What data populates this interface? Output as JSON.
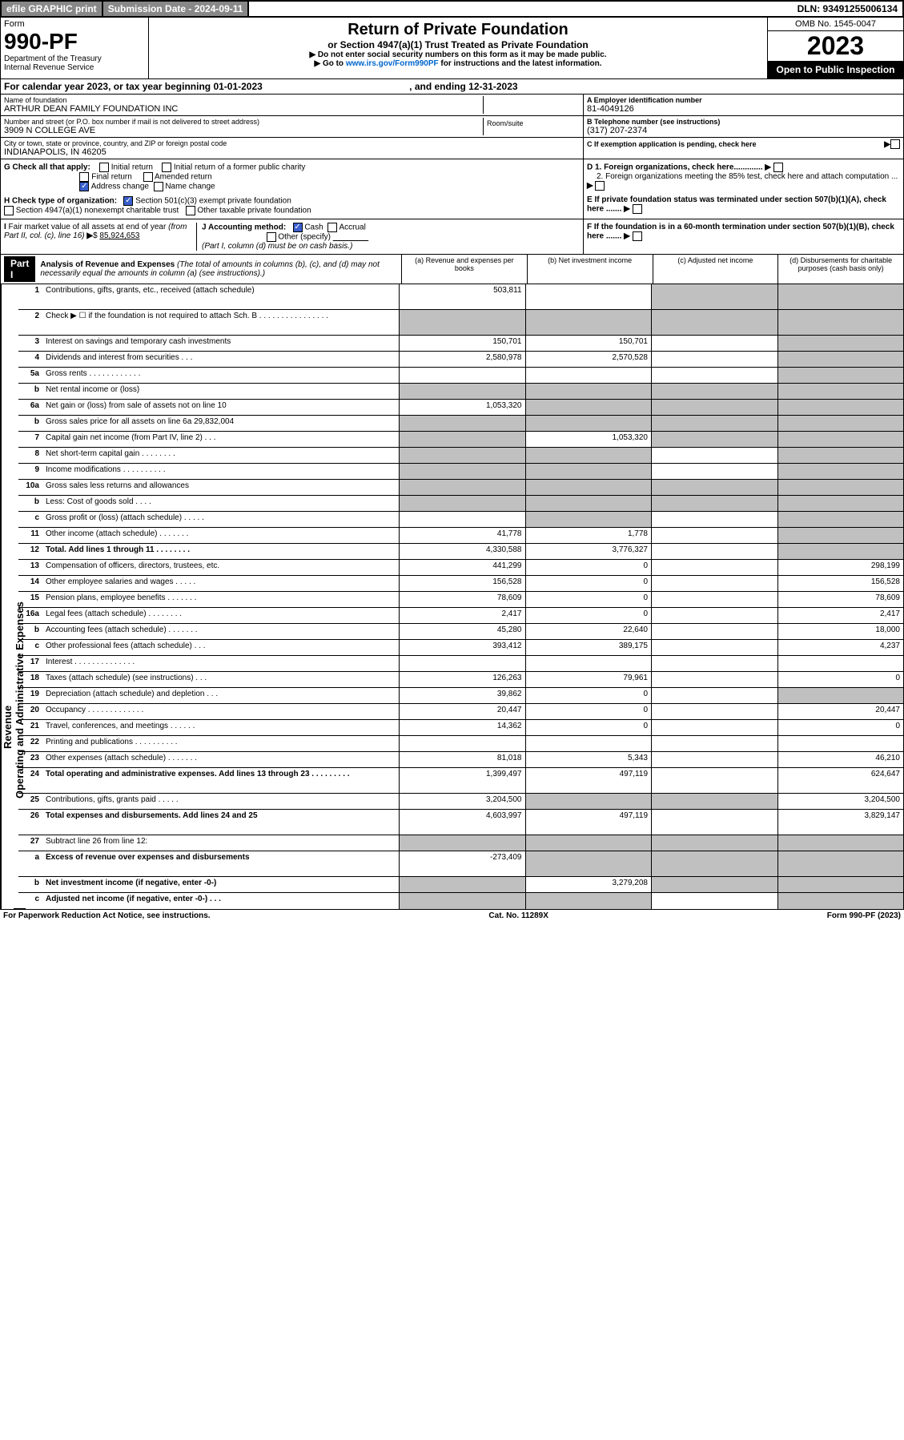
{
  "topbar": {
    "efile": "efile GRAPHIC print",
    "subdate": "Submission Date - 2024-09-11",
    "dln": "DLN: 93491255006134"
  },
  "header": {
    "form": "Form",
    "num": "990-PF",
    "dept": "Department of the Treasury\nInternal Revenue Service",
    "title": "Return of Private Foundation",
    "sub": "or Section 4947(a)(1) Trust Treated as Private Foundation",
    "note1": "▶ Do not enter social security numbers on this form as it may be made public.",
    "note2": "▶ Go to www.irs.gov/Form990PF for instructions and the latest information.",
    "link": "www.irs.gov/Form990PF",
    "omb": "OMB No. 1545-0047",
    "year": "2023",
    "open": "Open to Public Inspection"
  },
  "calyear": "For calendar year 2023, or tax year beginning 01-01-2023",
  "ending": ", and ending 12-31-2023",
  "info": {
    "name_lbl": "Name of foundation",
    "name": "ARTHUR DEAN FAMILY FOUNDATION INC",
    "addr_lbl": "Number and street (or P.O. box number if mail is not delivered to street address)",
    "addr": "3909 N COLLEGE AVE",
    "room_lbl": "Room/suite",
    "city_lbl": "City or town, state or province, country, and ZIP or foreign postal code",
    "city": "INDIANAPOLIS, IN  46205",
    "a_lbl": "A Employer identification number",
    "a_val": "81-4049126",
    "b_lbl": "B Telephone number (see instructions)",
    "b_val": "(317) 207-2374",
    "c_lbl": "C If exemption application is pending, check here"
  },
  "g": {
    "lbl": "G Check all that apply:",
    "o1": "Initial return",
    "o2": "Final return",
    "o3": "Address change",
    "o4": "Initial return of a former public charity",
    "o5": "Amended return",
    "o6": "Name change"
  },
  "h": {
    "lbl": "H Check type of organization:",
    "o1": "Section 501(c)(3) exempt private foundation",
    "o2": "Section 4947(a)(1) nonexempt charitable trust",
    "o3": "Other taxable private foundation"
  },
  "i": {
    "lbl": "I Fair market value of all assets at end of year (from Part II, col. (c), line 16) ▶$",
    "val": "85,924,653"
  },
  "j": {
    "lbl": "J Accounting method:",
    "o1": "Cash",
    "o2": "Accrual",
    "o3": "Other (specify)",
    "note": "(Part I, column (d) must be on cash basis.)"
  },
  "d": {
    "d1": "D 1. Foreign organizations, check here.............",
    "d2": "2. Foreign organizations meeting the 85% test, check here and attach computation ..."
  },
  "e_lbl": "E  If private foundation status was terminated under section 507(b)(1)(A), check here .......",
  "f_lbl": "F  If the foundation is in a 60-month termination under section 507(b)(1)(B), check here .......",
  "parti": {
    "lbl": "Part I",
    "title": "Analysis of Revenue and Expenses",
    "note": "(The total of amounts in columns (b), (c), and (d) may not necessarily equal the amounts in column (a) (see instructions).)",
    "ca": "(a)    Revenue and expenses per books",
    "cb": "(b)    Net investment income",
    "cc": "(c)   Adjusted net income",
    "cd": "(d)   Disbursements for charitable purposes (cash basis only)"
  },
  "sidebar": {
    "rev": "Revenue",
    "exp": "Operating and Administrative Expenses"
  },
  "rows": [
    {
      "ln": "1",
      "desc": "Contributions, gifts, grants, etc., received (attach schedule)",
      "a": "503,811",
      "b": "",
      "c": "g",
      "d": "g",
      "tall": true
    },
    {
      "ln": "2",
      "desc": "Check ▶ ☐ if the foundation is not required to attach Sch. B    .  .  .  .  .  .  .  .  .  .  .  .  .  .  .  .",
      "a": "g",
      "b": "g",
      "c": "g",
      "d": "g",
      "tall": true,
      "abold": true
    },
    {
      "ln": "3",
      "desc": "Interest on savings and temporary cash investments",
      "a": "150,701",
      "b": "150,701",
      "c": "",
      "d": "g"
    },
    {
      "ln": "4",
      "desc": "Dividends and interest from securities    .  .  .",
      "a": "2,580,978",
      "b": "2,570,528",
      "c": "",
      "d": "g"
    },
    {
      "ln": "5a",
      "desc": "Gross rents    .  .  .  .  .  .  .  .  .  .  .  .",
      "a": "",
      "b": "",
      "c": "",
      "d": "g"
    },
    {
      "ln": "b",
      "desc": "Net rental income or (loss) ",
      "a": "g",
      "b": "g",
      "c": "g",
      "d": "g"
    },
    {
      "ln": "6a",
      "desc": "Net gain or (loss) from sale of assets not on line 10",
      "a": "1,053,320",
      "b": "g",
      "c": "g",
      "d": "g"
    },
    {
      "ln": "b",
      "desc": "Gross sales price for all assets on line 6a  29,832,004",
      "a": "g",
      "b": "g",
      "c": "g",
      "d": "g"
    },
    {
      "ln": "7",
      "desc": "Capital gain net income (from Part IV, line 2)  .  .  .",
      "a": "g",
      "b": "1,053,320",
      "c": "g",
      "d": "g"
    },
    {
      "ln": "8",
      "desc": "Net short-term capital gain  .  .  .  .  .  .  .  .",
      "a": "g",
      "b": "g",
      "c": "",
      "d": "g"
    },
    {
      "ln": "9",
      "desc": "Income modifications .  .  .  .  .  .  .  .  .  .",
      "a": "g",
      "b": "g",
      "c": "",
      "d": "g"
    },
    {
      "ln": "10a",
      "desc": "Gross sales less returns and allowances ",
      "a": "g",
      "b": "g",
      "c": "g",
      "d": "g"
    },
    {
      "ln": "b",
      "desc": "Less: Cost of goods sold  .  .  .  . ",
      "a": "g",
      "b": "g",
      "c": "g",
      "d": "g"
    },
    {
      "ln": "c",
      "desc": "Gross profit or (loss) (attach schedule)  .  .  .  .  .",
      "a": "",
      "b": "g",
      "c": "",
      "d": "g"
    },
    {
      "ln": "11",
      "desc": "Other income (attach schedule)  .  .  .  .  .  .  .",
      "a": "41,778",
      "b": "1,778",
      "c": "",
      "d": "g"
    },
    {
      "ln": "12",
      "desc": "Total. Add lines 1 through 11  .  .  .  .  .  .  .  .",
      "a": "4,330,588",
      "b": "3,776,327",
      "c": "",
      "d": "g",
      "bold": true
    },
    {
      "ln": "13",
      "desc": "Compensation of officers, directors, trustees, etc.",
      "a": "441,299",
      "b": "0",
      "c": "",
      "d": "298,199"
    },
    {
      "ln": "14",
      "desc": "Other employee salaries and wages  .  .  .  .  .",
      "a": "156,528",
      "b": "0",
      "c": "",
      "d": "156,528"
    },
    {
      "ln": "15",
      "desc": "Pension plans, employee benefits .  .  .  .  .  .  .",
      "a": "78,609",
      "b": "0",
      "c": "",
      "d": "78,609"
    },
    {
      "ln": "16a",
      "desc": "Legal fees (attach schedule) .  .  .  .  .  .  .  .",
      "a": "2,417",
      "b": "0",
      "c": "",
      "d": "2,417"
    },
    {
      "ln": "b",
      "desc": "Accounting fees (attach schedule) .  .  .  .  .  .  .",
      "a": "45,280",
      "b": "22,640",
      "c": "",
      "d": "18,000"
    },
    {
      "ln": "c",
      "desc": "Other professional fees (attach schedule)  .  .  .",
      "a": "393,412",
      "b": "389,175",
      "c": "",
      "d": "4,237"
    },
    {
      "ln": "17",
      "desc": "Interest .  .  .  .  .  .  .  .  .  .  .  .  .  .",
      "a": "",
      "b": "",
      "c": "",
      "d": ""
    },
    {
      "ln": "18",
      "desc": "Taxes (attach schedule) (see instructions)  .  .  .",
      "a": "126,263",
      "b": "79,961",
      "c": "",
      "d": "0"
    },
    {
      "ln": "19",
      "desc": "Depreciation (attach schedule) and depletion  .  .  .",
      "a": "39,862",
      "b": "0",
      "c": "",
      "d": "g"
    },
    {
      "ln": "20",
      "desc": "Occupancy .  .  .  .  .  .  .  .  .  .  .  .  .",
      "a": "20,447",
      "b": "0",
      "c": "",
      "d": "20,447"
    },
    {
      "ln": "21",
      "desc": "Travel, conferences, and meetings .  .  .  .  .  .",
      "a": "14,362",
      "b": "0",
      "c": "",
      "d": "0"
    },
    {
      "ln": "22",
      "desc": "Printing and publications .  .  .  .  .  .  .  .  .  .",
      "a": "",
      "b": "",
      "c": "",
      "d": ""
    },
    {
      "ln": "23",
      "desc": "Other expenses (attach schedule) .  .  .  .  .  .  .",
      "a": "81,018",
      "b": "5,343",
      "c": "",
      "d": "46,210"
    },
    {
      "ln": "24",
      "desc": "Total operating and administrative expenses. Add lines 13 through 23  .  .  .  .  .  .  .  .  .",
      "a": "1,399,497",
      "b": "497,119",
      "c": "",
      "d": "624,647",
      "bold": true,
      "tall": true
    },
    {
      "ln": "25",
      "desc": "Contributions, gifts, grants paid  .  .  .  .  .",
      "a": "3,204,500",
      "b": "g",
      "c": "g",
      "d": "3,204,500"
    },
    {
      "ln": "26",
      "desc": "Total expenses and disbursements. Add lines 24 and 25",
      "a": "4,603,997",
      "b": "497,119",
      "c": "",
      "d": "3,829,147",
      "bold": true,
      "tall": true
    },
    {
      "ln": "27",
      "desc": "Subtract line 26 from line 12:",
      "a": "g",
      "b": "g",
      "c": "g",
      "d": "g"
    },
    {
      "ln": "a",
      "desc": "Excess of revenue over expenses and disbursements",
      "a": "-273,409",
      "b": "g",
      "c": "g",
      "d": "g",
      "bold": true,
      "tall": true
    },
    {
      "ln": "b",
      "desc": "Net investment income (if negative, enter -0-)",
      "a": "g",
      "b": "3,279,208",
      "c": "g",
      "d": "g",
      "bold": true
    },
    {
      "ln": "c",
      "desc": "Adjusted net income (if negative, enter -0-)  .  .  .",
      "a": "g",
      "b": "g",
      "c": "",
      "d": "g",
      "bold": true
    }
  ],
  "footer": {
    "l": "For Paperwork Reduction Act Notice, see instructions.",
    "c": "Cat. No. 11289X",
    "r": "Form 990-PF (2023)"
  }
}
